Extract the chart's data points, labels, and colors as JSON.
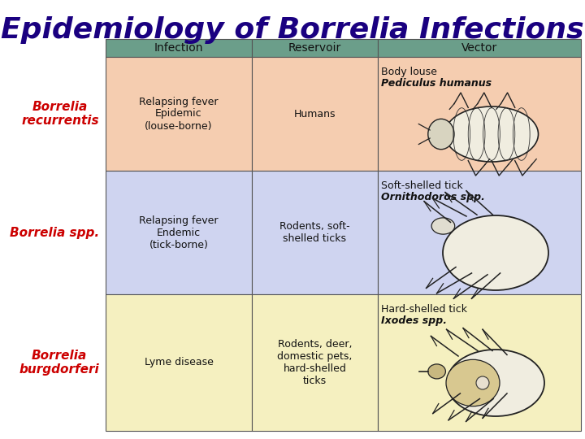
{
  "title": "Epidemiology of Borrelia Infections",
  "title_color": "#1a0080",
  "title_fontsize": 26,
  "background_color": "#ffffff",
  "header_bg": "#6b9e8a",
  "header_text_color": "#111111",
  "headers": [
    "Infection",
    "Reservoir",
    "Vector"
  ],
  "row_labels": [
    "Borrelia\nrecurrentis",
    "Borrelia spp.",
    "Borrelia\nburgdorferi"
  ],
  "row_label_color": "#cc0000",
  "row_bg_colors": [
    "#f5cdb0",
    "#cfd4f0",
    "#f5f0c0"
  ],
  "cell_data": [
    [
      "Relapsing fever\nEpidemic\n(louse-borne)",
      "Humans",
      "Body louse\nPediculus humanus"
    ],
    [
      "Relapsing fever\nEndemic\n(tick-borne)",
      "Rodents, soft-\nshelled ticks",
      "Soft-shelled tick\nOrnithodoros spp."
    ],
    [
      "Lyme disease",
      "Rodents, deer,\ndomestic pets,\nhard-shelled\nticks",
      "Hard-shelled tick\nIxodes spp."
    ]
  ],
  "font_size_cell": 9,
  "font_size_label": 11,
  "font_size_header": 10
}
